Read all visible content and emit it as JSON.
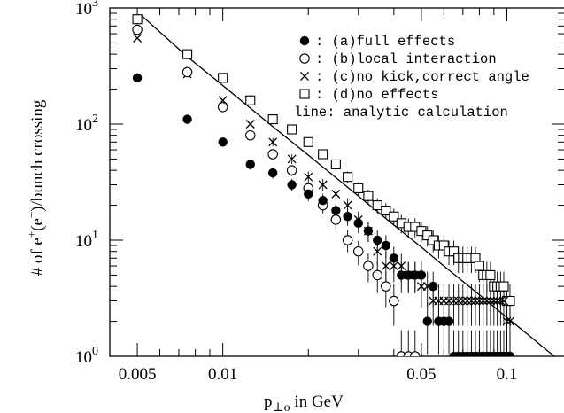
{
  "chart_data": {
    "type": "scatter",
    "title": "",
    "xlabel": {
      "main": "p",
      "sub": "⊥o",
      "rest": " in GeV"
    },
    "ylabel": {
      "prefix": "# of e",
      "sup1": "+",
      "mid": "(e",
      "sup2": "−",
      "suffix": ")/bunch crossing"
    },
    "x_scale": "log",
    "y_scale": "log",
    "xlim": [
      0.004,
      0.16
    ],
    "ylim": [
      1,
      1000
    ],
    "x_ticks": [
      {
        "value": 0.005,
        "label": "0.005"
      },
      {
        "value": 0.01,
        "label": "0.01"
      },
      {
        "value": 0.05,
        "label": "0.05"
      },
      {
        "value": 0.1,
        "label": "0.1"
      }
    ],
    "y_ticks": [
      {
        "value": 1,
        "base": "10",
        "exp": "0"
      },
      {
        "value": 10,
        "base": "10",
        "exp": "1"
      },
      {
        "value": 100,
        "base": "10",
        "exp": "2"
      },
      {
        "value": 1000,
        "base": "10",
        "exp": "3"
      }
    ],
    "legend": {
      "position": "top-right",
      "entries": [
        {
          "marker": "filled-circle",
          "label": ": (a)full effects"
        },
        {
          "marker": "open-circle",
          "label": ": (b)local interaction"
        },
        {
          "marker": "cross",
          "label": ": (c)no kick,correct angle"
        },
        {
          "marker": "open-square",
          "label": ": (d)no effects"
        }
      ],
      "note": "line: analytic calculation"
    },
    "series": [
      {
        "name": "(a)full effects",
        "marker": "filled-circle",
        "x": [
          0.005,
          0.0075,
          0.01,
          0.0125,
          0.015,
          0.0175,
          0.02,
          0.0225,
          0.025,
          0.0275,
          0.03,
          0.0325,
          0.035,
          0.0375,
          0.04,
          0.0425,
          0.045,
          0.0475,
          0.05,
          0.0525,
          0.055,
          0.0575,
          0.06,
          0.0625,
          0.065,
          0.0675,
          0.07,
          0.0725,
          0.075,
          0.0775,
          0.08,
          0.0825,
          0.085,
          0.0875,
          0.09,
          0.0925,
          0.095,
          0.0975,
          0.1,
          0.1025
        ],
        "y": [
          250,
          110,
          70,
          45,
          38,
          30,
          25,
          22,
          18,
          16,
          14,
          12,
          10,
          9,
          7,
          5,
          5,
          5,
          5,
          2,
          4,
          2,
          2,
          2,
          1,
          1,
          1,
          1,
          1,
          1,
          1,
          1,
          1,
          1,
          1,
          1,
          1,
          1,
          1,
          1
        ]
      },
      {
        "name": "(b)local interaction",
        "marker": "open-circle",
        "x": [
          0.005,
          0.0075,
          0.01,
          0.0125,
          0.015,
          0.0175,
          0.02,
          0.0225,
          0.025,
          0.0275,
          0.03,
          0.0325,
          0.035,
          0.0375,
          0.04,
          0.0425,
          0.045,
          0.0475
        ],
        "y": [
          650,
          280,
          140,
          80,
          55,
          40,
          28,
          20,
          15,
          10,
          8,
          6,
          5,
          4,
          3,
          1,
          1,
          1
        ]
      },
      {
        "name": "(c)no kick,correct angle",
        "marker": "cross",
        "x": [
          0.005,
          0.0075,
          0.01,
          0.0125,
          0.015,
          0.0175,
          0.02,
          0.0225,
          0.025,
          0.0275,
          0.03,
          0.0325,
          0.035,
          0.0375,
          0.04,
          0.0425,
          0.045,
          0.0475,
          0.05,
          0.0525,
          0.055,
          0.0575,
          0.06,
          0.0625,
          0.065,
          0.0675,
          0.07,
          0.0725,
          0.075,
          0.0775,
          0.08,
          0.0825,
          0.085,
          0.0875,
          0.09,
          0.0925,
          0.095,
          0.0975,
          0.1,
          0.1025
        ],
        "y": [
          550,
          270,
          160,
          100,
          70,
          50,
          35,
          30,
          25,
          20,
          15,
          12,
          8,
          6,
          6,
          6,
          5,
          5,
          4,
          4,
          3,
          3,
          3,
          3,
          3,
          3,
          3,
          3,
          3,
          3,
          3,
          3,
          3,
          3,
          3,
          3,
          3,
          3,
          2,
          2
        ]
      },
      {
        "name": "(d)no effects",
        "marker": "open-square",
        "x": [
          0.005,
          0.0075,
          0.01,
          0.0125,
          0.015,
          0.0175,
          0.02,
          0.0225,
          0.025,
          0.0275,
          0.03,
          0.0325,
          0.035,
          0.0375,
          0.04,
          0.0425,
          0.045,
          0.0475,
          0.05,
          0.0525,
          0.055,
          0.0575,
          0.06,
          0.0625,
          0.065,
          0.0675,
          0.07,
          0.0725,
          0.075,
          0.0775,
          0.08,
          0.0825,
          0.085,
          0.0875,
          0.09,
          0.0925,
          0.095,
          0.0975,
          0.1,
          0.1025
        ],
        "y": [
          800,
          400,
          250,
          160,
          110,
          90,
          70,
          55,
          45,
          35,
          28,
          24,
          20,
          18,
          16,
          14,
          13,
          13,
          12,
          11,
          10,
          9,
          9,
          8,
          8,
          7,
          7,
          7,
          7,
          7,
          6,
          5,
          5,
          5,
          4,
          4,
          4,
          4,
          3,
          3
        ]
      }
    ],
    "analytic_line": {
      "name": "analytic calculation",
      "x": [
        0.0052,
        0.0075,
        0.01,
        0.015,
        0.02,
        0.03,
        0.04,
        0.05,
        0.06,
        0.075,
        0.09,
        0.1,
        0.12,
        0.14,
        0.16
      ],
      "y": [
        850,
        380,
        215,
        95,
        54,
        24,
        13.5,
        8.7,
        6.0,
        3.85,
        2.67,
        2.16,
        1.5,
        1.1,
        0.85
      ]
    }
  }
}
